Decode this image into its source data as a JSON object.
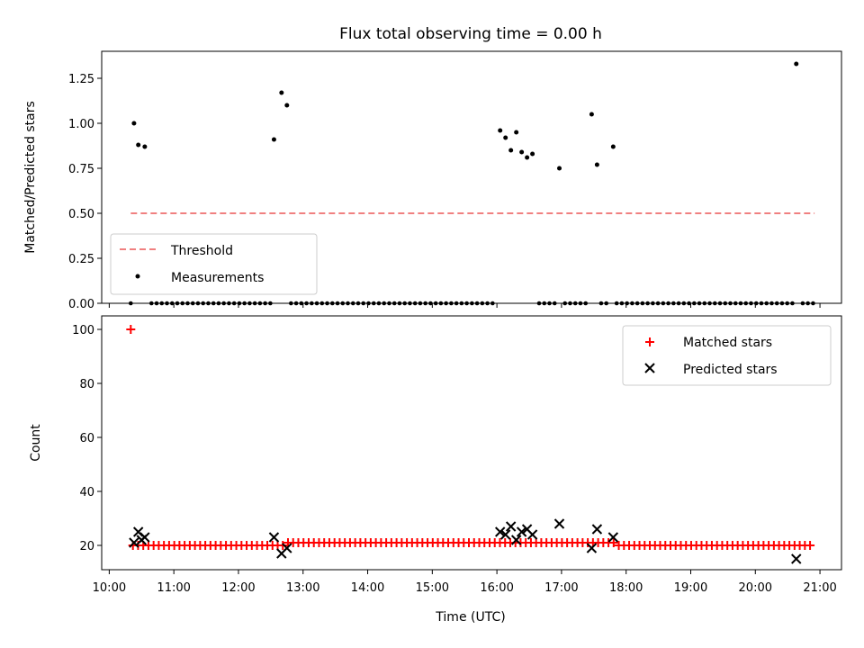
{
  "chart_data": [
    {
      "type": "scatter",
      "title": "Flux total observing time = 0.00 h",
      "xlabel": "",
      "ylabel": "Matched/Predicted stars",
      "ylim": [
        0,
        1.4
      ],
      "xlim": [
        "09:53",
        "21:20"
      ],
      "yticks": [
        "0.00",
        "0.25",
        "0.50",
        "0.75",
        "1.00",
        "1.25"
      ],
      "threshold": {
        "label": "Threshold",
        "value": 0.5,
        "x_start": "10:20",
        "x_end": "20:55",
        "color": "#f08080",
        "style": "dashed"
      },
      "measurements": {
        "label": "Measurements",
        "color": "#000000",
        "nonzero_points": [
          {
            "x": "10:23",
            "y": 1.0
          },
          {
            "x": "10:27",
            "y": 0.88
          },
          {
            "x": "10:33",
            "y": 0.87
          },
          {
            "x": "12:33",
            "y": 0.91
          },
          {
            "x": "12:40",
            "y": 1.17
          },
          {
            "x": "12:45",
            "y": 1.1
          },
          {
            "x": "16:03",
            "y": 0.96
          },
          {
            "x": "16:08",
            "y": 0.92
          },
          {
            "x": "16:13",
            "y": 0.85
          },
          {
            "x": "16:18",
            "y": 0.95
          },
          {
            "x": "16:23",
            "y": 0.84
          },
          {
            "x": "16:28",
            "y": 0.81
          },
          {
            "x": "16:33",
            "y": 0.83
          },
          {
            "x": "16:58",
            "y": 0.75
          },
          {
            "x": "17:28",
            "y": 1.05
          },
          {
            "x": "17:33",
            "y": 0.77
          },
          {
            "x": "17:48",
            "y": 0.87
          },
          {
            "x": "20:38",
            "y": 1.33
          }
        ],
        "zero_points_note": "Most remaining measurements lie at 0.00 between 10:20 and 20:55"
      },
      "legend": [
        "Threshold",
        "Measurements"
      ],
      "legend_position": "lower-left"
    },
    {
      "type": "scatter",
      "title": "",
      "xlabel": "Time (UTC)",
      "ylabel": "Count",
      "ylim": [
        11,
        105
      ],
      "xlim": [
        "09:53",
        "21:20"
      ],
      "yticks": [
        "20",
        "40",
        "60",
        "80",
        "100"
      ],
      "xticks": [
        "10:00",
        "11:00",
        "12:00",
        "13:00",
        "14:00",
        "15:00",
        "16:00",
        "17:00",
        "18:00",
        "19:00",
        "20:00",
        "21:00"
      ],
      "series": [
        {
          "name": "Matched stars",
          "marker": "+",
          "color": "#ff0000",
          "outlier": {
            "x": "10:20",
            "y": 100
          },
          "baseline_note": "Roughly 20 matched stars every ~4-5 minutes from 10:20 to 20:55 (about 21 between 12:45 and 17:50)"
        },
        {
          "name": "Predicted stars",
          "marker": "x",
          "color": "#000000",
          "points": [
            {
              "x": "10:23",
              "y": 21
            },
            {
              "x": "10:27",
              "y": 25
            },
            {
              "x": "10:30",
              "y": 22
            },
            {
              "x": "10:33",
              "y": 23
            },
            {
              "x": "12:33",
              "y": 23
            },
            {
              "x": "12:40",
              "y": 17
            },
            {
              "x": "12:45",
              "y": 19
            },
            {
              "x": "16:03",
              "y": 25
            },
            {
              "x": "16:08",
              "y": 24
            },
            {
              "x": "16:13",
              "y": 27
            },
            {
              "x": "16:18",
              "y": 22
            },
            {
              "x": "16:23",
              "y": 25
            },
            {
              "x": "16:28",
              "y": 26
            },
            {
              "x": "16:33",
              "y": 24
            },
            {
              "x": "16:58",
              "y": 28
            },
            {
              "x": "17:28",
              "y": 19
            },
            {
              "x": "17:33",
              "y": 26
            },
            {
              "x": "17:48",
              "y": 23
            },
            {
              "x": "20:38",
              "y": 15
            }
          ]
        }
      ],
      "legend": [
        "Matched stars",
        "Predicted stars"
      ],
      "legend_position": "top-right"
    }
  ]
}
